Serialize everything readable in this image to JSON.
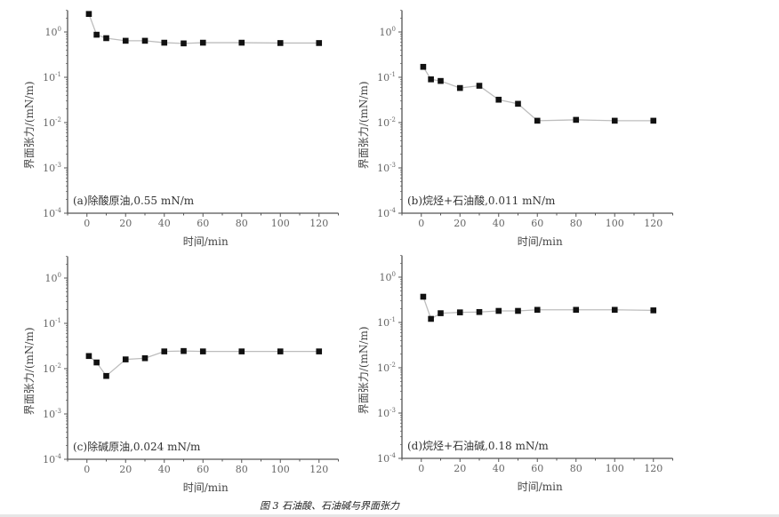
{
  "caption": "图 3   石油酸、石油碱与界面张力",
  "colors": {
    "line": "#bdbdbd",
    "marker": "#111111",
    "axis": "#555555"
  },
  "chart_data": [
    {
      "type": "line",
      "annotation": "(a)除酸原油,0.55 mN/m",
      "xlabel": "时间/min",
      "ylabel": "界面张力/(mN/m)",
      "xlim": [
        -10,
        130
      ],
      "ylim": [
        0.0001,
        3
      ],
      "yscale": "log",
      "xticks": [
        "0",
        "20",
        "40",
        "60",
        "80",
        "100",
        "120"
      ],
      "yticks": [
        "10^0",
        "10^-1",
        "10^-2",
        "10^-3",
        "10^-4"
      ],
      "grid": false,
      "x": [
        1,
        5,
        10,
        20,
        30,
        40,
        50,
        60,
        80,
        100,
        120
      ],
      "values": [
        2.5,
        0.87,
        0.73,
        0.64,
        0.64,
        0.58,
        0.56,
        0.58,
        0.58,
        0.57,
        0.57
      ]
    },
    {
      "type": "line",
      "annotation": "(b)烷烃+石油酸,0.011 mN/m",
      "xlabel": "时间/min",
      "ylabel": "界面张力/(mN/m)",
      "xlim": [
        -10,
        130
      ],
      "ylim": [
        0.0001,
        3
      ],
      "yscale": "log",
      "xticks": [
        "0",
        "20",
        "40",
        "60",
        "80",
        "100",
        "120"
      ],
      "yticks": [
        "10^0",
        "10^-1",
        "10^-2",
        "10^-3",
        "10^-4"
      ],
      "grid": false,
      "x": [
        1,
        5,
        10,
        20,
        30,
        40,
        50,
        60,
        80,
        100,
        120
      ],
      "values": [
        0.17,
        0.09,
        0.083,
        0.058,
        0.065,
        0.032,
        0.026,
        0.011,
        0.0115,
        0.011,
        0.011
      ]
    },
    {
      "type": "line",
      "annotation": "(c)除碱原油,0.024 mN/m",
      "xlabel": "时间/min",
      "ylabel": "界面张力/(mN/m)",
      "xlim": [
        -10,
        130
      ],
      "ylim": [
        0.0001,
        3
      ],
      "yscale": "log",
      "xticks": [
        "0",
        "20",
        "40",
        "60",
        "80",
        "100",
        "120"
      ],
      "yticks": [
        "10^0",
        "10^-1",
        "10^-2",
        "10^-3",
        "10^-4"
      ],
      "grid": false,
      "x": [
        1,
        5,
        10,
        20,
        30,
        40,
        50,
        60,
        80,
        100,
        120
      ],
      "values": [
        0.019,
        0.0137,
        0.0069,
        0.016,
        0.017,
        0.024,
        0.0245,
        0.024,
        0.024,
        0.024,
        0.024
      ]
    },
    {
      "type": "line",
      "annotation": "(d)烷烃+石油碱,0.18 mN/m",
      "xlabel": "时间/min",
      "ylabel": "界面张力/(mN/m)",
      "xlim": [
        -10,
        130
      ],
      "ylim": [
        0.0001,
        3
      ],
      "yscale": "log",
      "xticks": [
        "0",
        "20",
        "40",
        "60",
        "80",
        "100",
        "120"
      ],
      "yticks": [
        "10^0",
        "10^-1",
        "10^-2",
        "10^-3",
        "10^-4"
      ],
      "grid": false,
      "x": [
        1,
        5,
        10,
        20,
        30,
        40,
        50,
        60,
        80,
        100,
        120
      ],
      "values": [
        0.37,
        0.12,
        0.16,
        0.167,
        0.17,
        0.18,
        0.18,
        0.19,
        0.19,
        0.19,
        0.185
      ]
    }
  ]
}
